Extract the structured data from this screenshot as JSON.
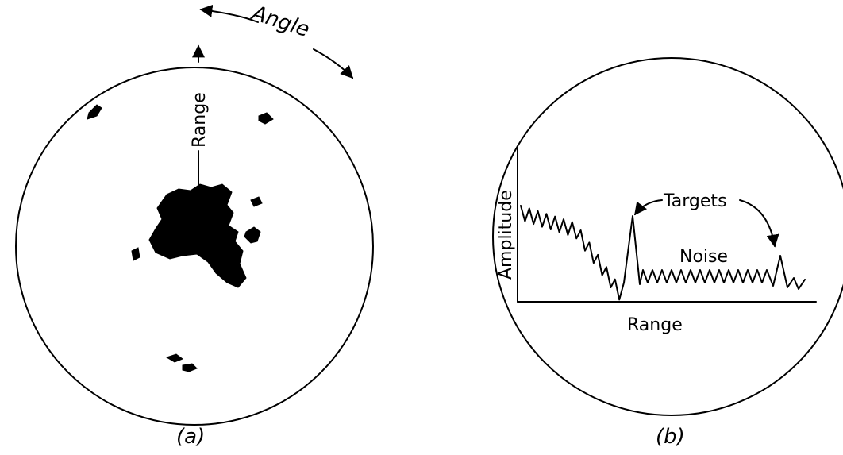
{
  "panel_a": {
    "angle_label": "Angle",
    "range_label": "Range",
    "caption": "(a)"
  },
  "panel_b": {
    "y_axis_label": "Amplitude",
    "x_axis_label": "Range",
    "targets_label": "Targets",
    "noise_label": "Noise",
    "caption": "(b)"
  }
}
